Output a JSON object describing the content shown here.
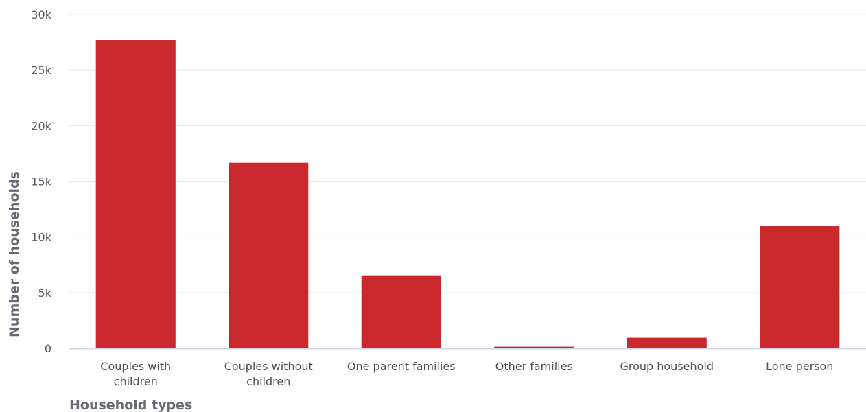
{
  "chart_data": {
    "type": "bar",
    "categories": [
      [
        "Couples with",
        "children"
      ],
      [
        "Couples without",
        "children"
      ],
      [
        "One parent families"
      ],
      [
        "Other families"
      ],
      [
        "Group household"
      ],
      [
        "Lone person"
      ]
    ],
    "values": [
      27700,
      16650,
      6550,
      150,
      950,
      11000
    ],
    "xlabel": "Household types",
    "ylabel": "Number of households",
    "ylim": [
      0,
      30000
    ],
    "yticks": [
      "0",
      "5k",
      "10k",
      "15k",
      "20k",
      "25k",
      "30k"
    ],
    "ytick_values": [
      0,
      5000,
      10000,
      15000,
      20000,
      25000,
      30000
    ],
    "grid": true,
    "bar_color": "#c9282d",
    "grid_color": "#e3e6eb",
    "axis_color": "#cfd8e6"
  }
}
